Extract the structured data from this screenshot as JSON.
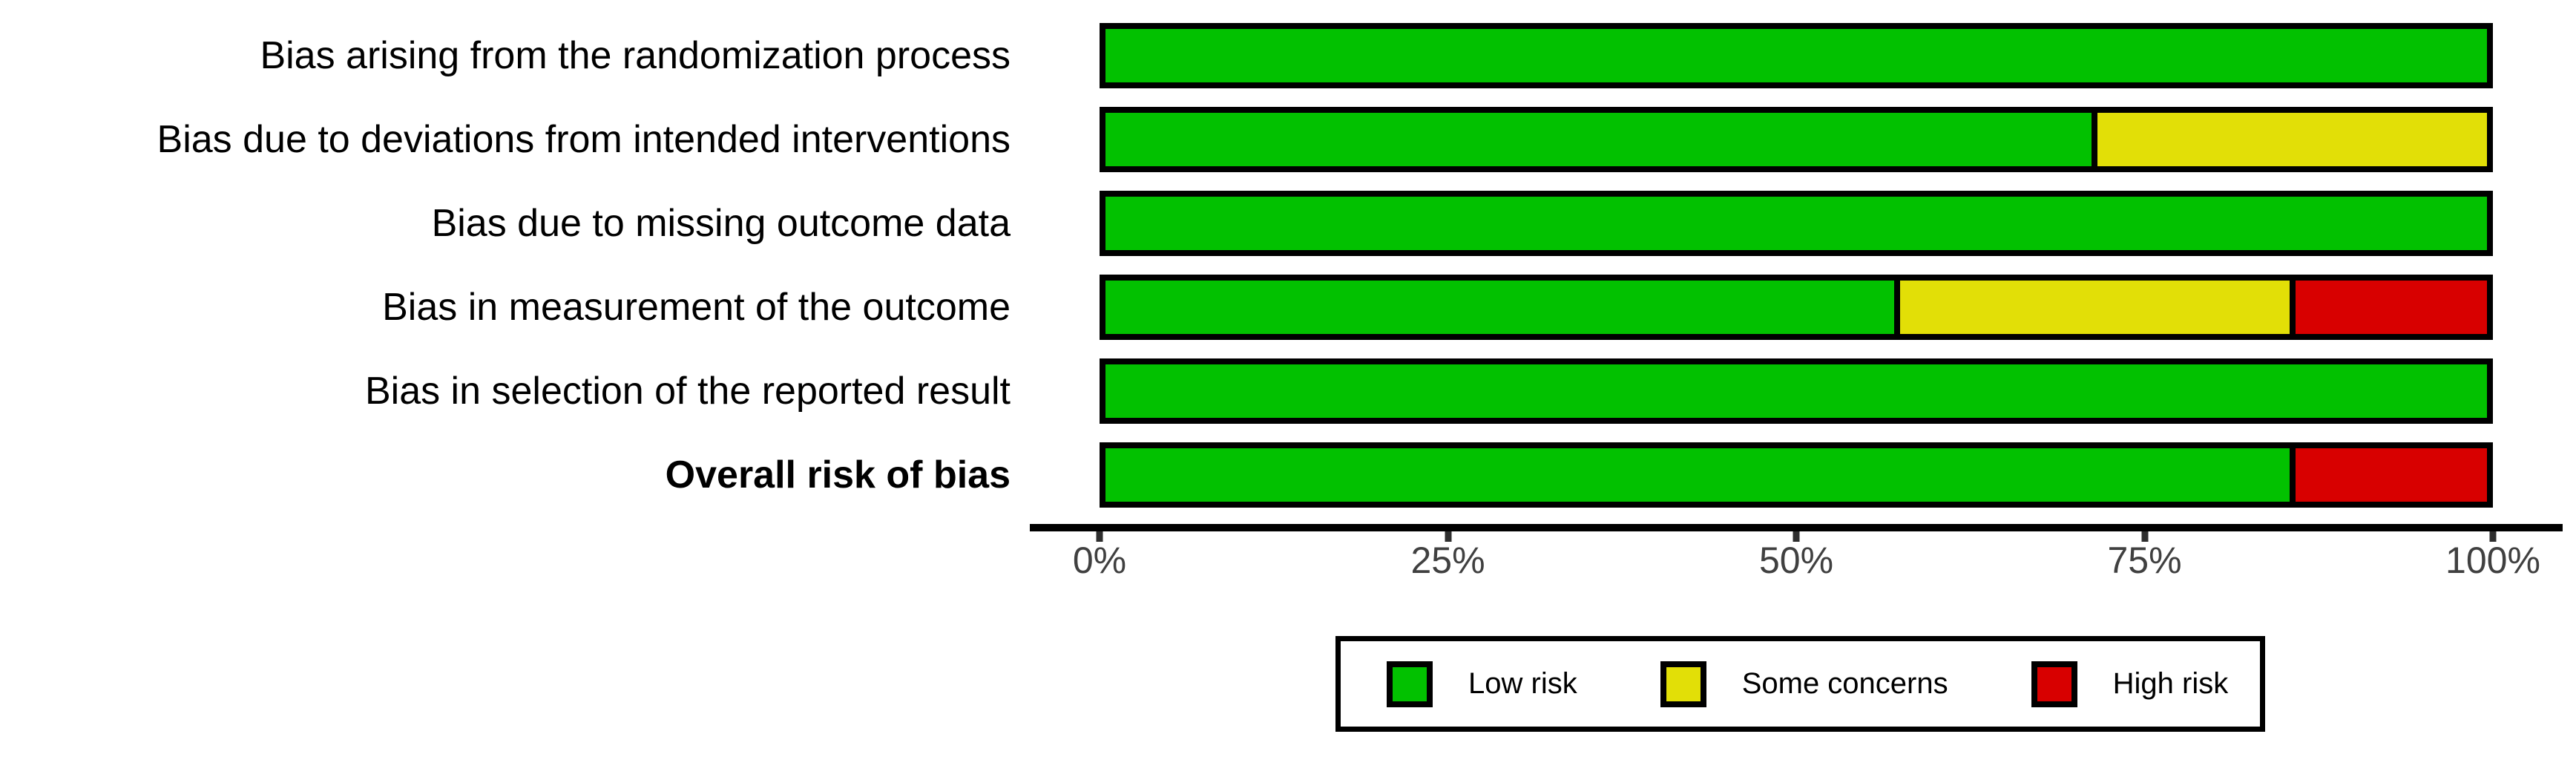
{
  "chart_data": {
    "type": "bar",
    "orientation": "horizontal",
    "stacked": true,
    "units": "percent",
    "title": "",
    "xlabel": "",
    "ylabel": "",
    "xlim": [
      0,
      100
    ],
    "grid": false,
    "categories": [
      {
        "label": "Bias arising from the randomization process",
        "bold": false
      },
      {
        "label": "Bias due to deviations from intended interventions",
        "bold": false
      },
      {
        "label": "Bias due to missing outcome data",
        "bold": false
      },
      {
        "label": "Bias in measurement of the outcome",
        "bold": false
      },
      {
        "label": "Bias in selection of the reported result",
        "bold": false
      },
      {
        "label": "Overall risk of bias",
        "bold": true
      }
    ],
    "series": [
      {
        "name": "Low risk",
        "color": "#02C100",
        "values": [
          100,
          71.4,
          100,
          57.1,
          100,
          85.7
        ]
      },
      {
        "name": "Some concerns",
        "color": "#E2DF07",
        "values": [
          0,
          28.6,
          0,
          28.6,
          0,
          0
        ]
      },
      {
        "name": "High risk",
        "color": "#D80000",
        "values": [
          0,
          0,
          0,
          14.3,
          0,
          14.3
        ]
      }
    ],
    "x_ticks": [
      {
        "value": 0,
        "label": "0%"
      },
      {
        "value": 25,
        "label": "25%"
      },
      {
        "value": 50,
        "label": "50%"
      },
      {
        "value": 75,
        "label": "75%"
      },
      {
        "value": 100,
        "label": "100%"
      }
    ],
    "legend": {
      "position": "bottom",
      "entries": [
        {
          "label": "Low risk",
          "color": "#02C100"
        },
        {
          "label": "Some concerns",
          "color": "#E2DF07"
        },
        {
          "label": "High risk",
          "color": "#D80000"
        }
      ]
    }
  }
}
